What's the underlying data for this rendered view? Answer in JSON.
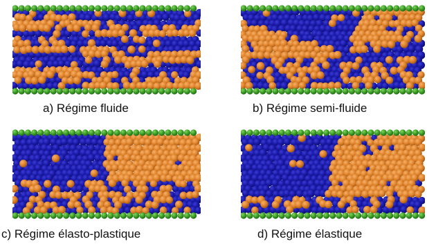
{
  "colors": {
    "blue_particle": "#1a1aa8",
    "blue_dark": "#0c0c70",
    "orange_particle": "#e0842c",
    "orange_dark": "#a35714",
    "green_wall": "#3f9f28",
    "green_wall_dark": "#1f6b12"
  },
  "panels": [
    {
      "id": "a",
      "regime": "fluid-layers",
      "caption": "a) Régime fluide"
    },
    {
      "id": "b",
      "regime": "semi-fluid",
      "caption": "b) Régime semi-fluide"
    },
    {
      "id": "c",
      "regime": "elasto-plastic",
      "caption": "c) Régime élasto-plastique"
    },
    {
      "id": "d",
      "regime": "elastic",
      "caption": "d) Régime élastique"
    }
  ]
}
